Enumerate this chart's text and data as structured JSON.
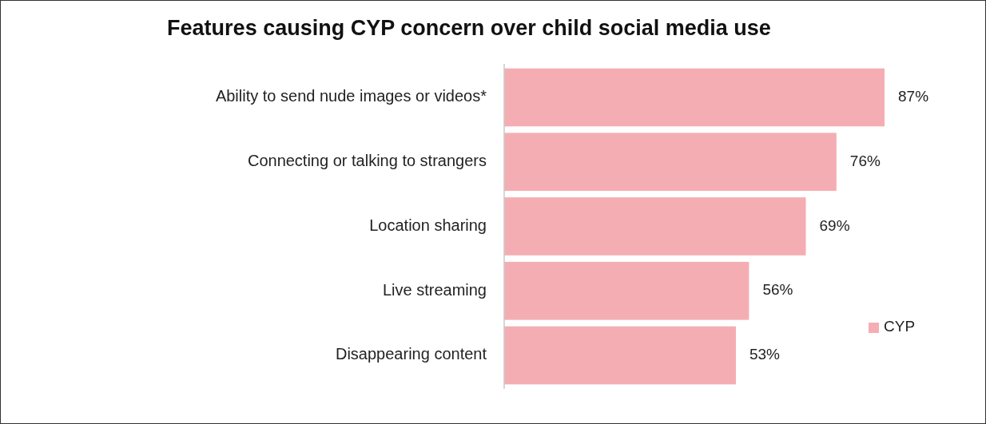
{
  "chart_data": {
    "type": "bar",
    "orientation": "horizontal",
    "title": "Features causing CYP concern over child social media use",
    "categories": [
      "Ability to send nude images or videos*",
      "Connecting or talking to strangers",
      "Location sharing",
      "Live streaming",
      "Disappearing content"
    ],
    "series": [
      {
        "name": "CYP",
        "color": "#f4aeb3",
        "values": [
          87,
          76,
          69,
          56,
          53
        ],
        "value_labels": [
          "87%",
          "76%",
          "69%",
          "56%",
          "53%"
        ]
      }
    ],
    "legend": "right"
  }
}
